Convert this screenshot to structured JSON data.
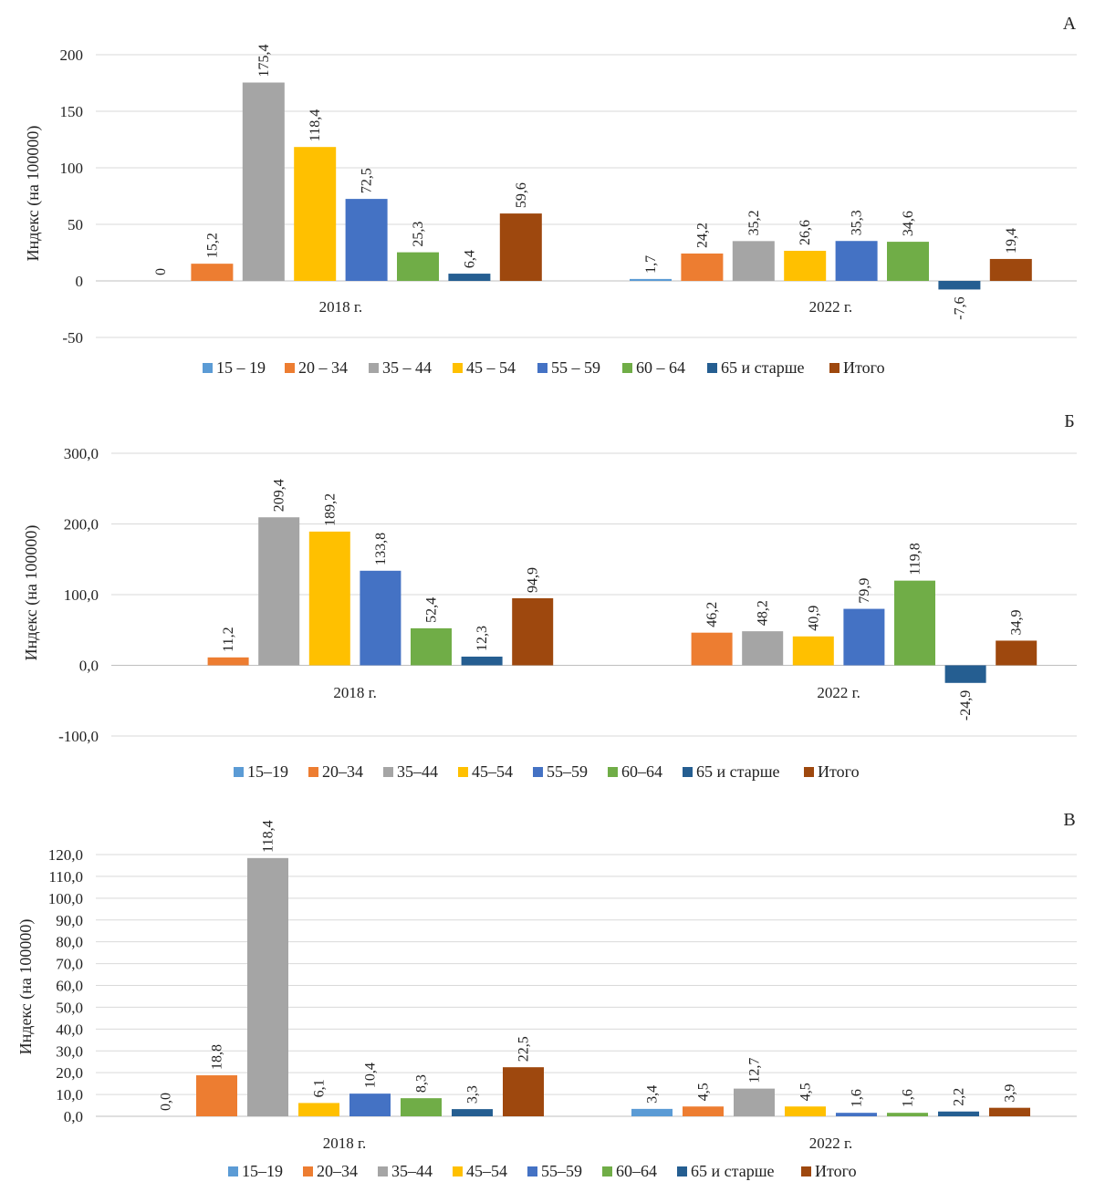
{
  "colors": {
    "15_19": "#5b9bd5",
    "20_34": "#ed7d31",
    "35_44": "#a5a5a5",
    "45_54": "#ffc000",
    "55_59": "#4472c4",
    "60_64": "#70ad47",
    "65plus": "#255e91",
    "total": "#9e480e"
  },
  "chart_data": [
    {
      "type": "bar",
      "panel_label": "А",
      "ylabel": "Индекс (на 100000)",
      "ylim": [
        -50,
        200
      ],
      "yticks": [
        -50,
        0,
        50,
        100,
        150,
        200
      ],
      "ytick_labels": [
        "-50",
        "0",
        "50",
        "100",
        "150",
        "200"
      ],
      "grid": true,
      "legend_position": "bottom",
      "categories": [
        "2018 г.",
        "2022 г."
      ],
      "series": [
        {
          "name": "15 – 19",
          "color_key": "15_19",
          "values": [
            0,
            1.7
          ],
          "labels": [
            "0",
            "1,7"
          ]
        },
        {
          "name": "20 – 34",
          "color_key": "20_34",
          "values": [
            15.2,
            24.2
          ],
          "labels": [
            "15,2",
            "24,2"
          ]
        },
        {
          "name": "35 – 44",
          "color_key": "35_44",
          "values": [
            175.4,
            35.2
          ],
          "labels": [
            "175,4",
            "35,2"
          ]
        },
        {
          "name": "45 – 54",
          "color_key": "45_54",
          "values": [
            118.4,
            26.6
          ],
          "labels": [
            "118,4",
            "26,6"
          ]
        },
        {
          "name": "55 – 59",
          "color_key": "55_59",
          "values": [
            72.5,
            35.3
          ],
          "labels": [
            "72,5",
            "35,3"
          ]
        },
        {
          "name": "60 – 64",
          "color_key": "60_64",
          "values": [
            25.3,
            34.6
          ],
          "labels": [
            "25,3",
            "34,6"
          ]
        },
        {
          "name": "65 и старше",
          "color_key": "65plus",
          "values": [
            6.4,
            -7.6
          ],
          "labels": [
            "6,4",
            "-7,6"
          ]
        },
        {
          "name": "Итого",
          "color_key": "total",
          "values": [
            59.6,
            19.4
          ],
          "labels": [
            "59,6",
            "19,4"
          ]
        }
      ]
    },
    {
      "type": "bar",
      "panel_label": "Б",
      "ylabel": "Индекс (на 100000)",
      "ylim": [
        -100,
        300
      ],
      "yticks": [
        -100,
        0,
        100,
        200,
        300
      ],
      "ytick_labels": [
        "-100,0",
        "0,0",
        "100,0",
        "200,0",
        "300,0"
      ],
      "grid": true,
      "legend_position": "bottom",
      "categories": [
        "2018 г.",
        "2022 г."
      ],
      "series": [
        {
          "name": "15–19",
          "color_key": "15_19",
          "values": [
            null,
            null
          ],
          "labels": [
            "",
            ""
          ]
        },
        {
          "name": "20–34",
          "color_key": "20_34",
          "values": [
            11.2,
            46.2
          ],
          "labels": [
            "11,2",
            "46,2"
          ]
        },
        {
          "name": "35–44",
          "color_key": "35_44",
          "values": [
            209.4,
            48.2
          ],
          "labels": [
            "209,4",
            "48,2"
          ]
        },
        {
          "name": "45–54",
          "color_key": "45_54",
          "values": [
            189.2,
            40.9
          ],
          "labels": [
            "189,2",
            "40,9"
          ]
        },
        {
          "name": "55–59",
          "color_key": "55_59",
          "values": [
            133.8,
            79.9
          ],
          "labels": [
            "133,8",
            "79,9"
          ]
        },
        {
          "name": "60–64",
          "color_key": "60_64",
          "values": [
            52.4,
            119.8
          ],
          "labels": [
            "52,4",
            "119,8"
          ]
        },
        {
          "name": "65 и старше",
          "color_key": "65plus",
          "values": [
            12.3,
            -24.9
          ],
          "labels": [
            "12,3",
            "-24,9"
          ]
        },
        {
          "name": "Итого",
          "color_key": "total",
          "values": [
            94.9,
            34.9
          ],
          "labels": [
            "94,9",
            "34,9"
          ]
        }
      ]
    },
    {
      "type": "bar",
      "panel_label": "В",
      "ylabel": "Индекс (на 100000)",
      "ylim": [
        0,
        120
      ],
      "yticks": [
        0,
        10,
        20,
        30,
        40,
        50,
        60,
        70,
        80,
        90,
        100,
        110,
        120
      ],
      "ytick_labels": [
        "0,0",
        "10,0",
        "20,0",
        "30,0",
        "40,0",
        "50,0",
        "60,0",
        "70,0",
        "80,0",
        "90,0",
        "100,0",
        "110,0",
        "120,0"
      ],
      "grid": true,
      "legend_position": "bottom",
      "categories": [
        "2018 г.",
        "2022 г."
      ],
      "series": [
        {
          "name": "15–19",
          "color_key": "15_19",
          "values": [
            0.0,
            3.4
          ],
          "labels": [
            "0,0",
            "3,4"
          ]
        },
        {
          "name": "20–34",
          "color_key": "20_34",
          "values": [
            18.8,
            4.5
          ],
          "labels": [
            "18,8",
            "4,5"
          ]
        },
        {
          "name": "35–44",
          "color_key": "35_44",
          "values": [
            118.4,
            12.7
          ],
          "labels": [
            "118,4",
            "12,7"
          ]
        },
        {
          "name": "45–54",
          "color_key": "45_54",
          "values": [
            6.1,
            4.5
          ],
          "labels": [
            "6,1",
            "4,5"
          ]
        },
        {
          "name": "55–59",
          "color_key": "55_59",
          "values": [
            10.4,
            1.6
          ],
          "labels": [
            "10,4",
            "1,6"
          ]
        },
        {
          "name": "60–64",
          "color_key": "60_64",
          "values": [
            8.3,
            1.6
          ],
          "labels": [
            "8,3",
            "1,6"
          ]
        },
        {
          "name": "65  и старше",
          "color_key": "65plus",
          "values": [
            3.3,
            2.2
          ],
          "labels": [
            "3,3",
            "2,2"
          ]
        },
        {
          "name": "Итого",
          "color_key": "total",
          "values": [
            22.5,
            3.9
          ],
          "labels": [
            "22,5",
            "3,9"
          ]
        }
      ]
    }
  ]
}
